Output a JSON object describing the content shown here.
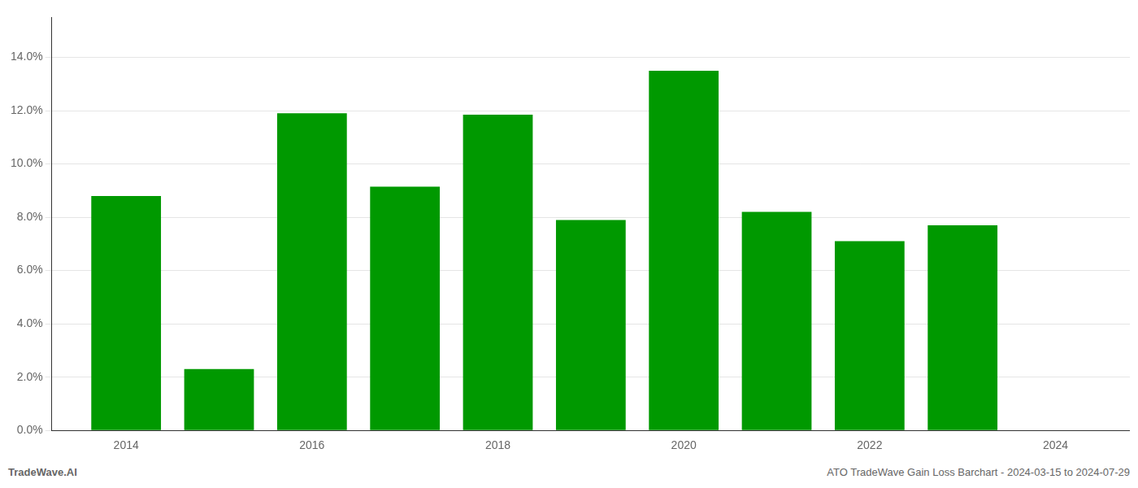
{
  "chart_data": {
    "type": "bar",
    "x": [
      2014,
      2015,
      2016,
      2017,
      2018,
      2019,
      2020,
      2021,
      2022,
      2023
    ],
    "values": [
      0.088,
      0.023,
      0.119,
      0.0915,
      0.1185,
      0.079,
      0.135,
      0.082,
      0.071,
      0.077
    ],
    "color": "#009900",
    "xlim": [
      2013.2,
      2024.8
    ],
    "xticks": [
      2014,
      2016,
      2018,
      2020,
      2022,
      2024
    ],
    "ylim": [
      0,
      0.155
    ],
    "yticks": [
      {
        "value": 0.0,
        "label": "0.0%"
      },
      {
        "value": 0.02,
        "label": "2.0%"
      },
      {
        "value": 0.04,
        "label": "4.0%"
      },
      {
        "value": 0.06,
        "label": "6.0%"
      },
      {
        "value": 0.08,
        "label": "8.0%"
      },
      {
        "value": 0.1,
        "label": "10.0%"
      },
      {
        "value": 0.12,
        "label": "12.0%"
      },
      {
        "value": 0.14,
        "label": "14.0%"
      }
    ],
    "grid": true,
    "annotations": [
      "TradeWave.AI",
      "ATO TradeWave Gain Loss Barchart - 2024-03-15 to 2024-07-29"
    ]
  }
}
